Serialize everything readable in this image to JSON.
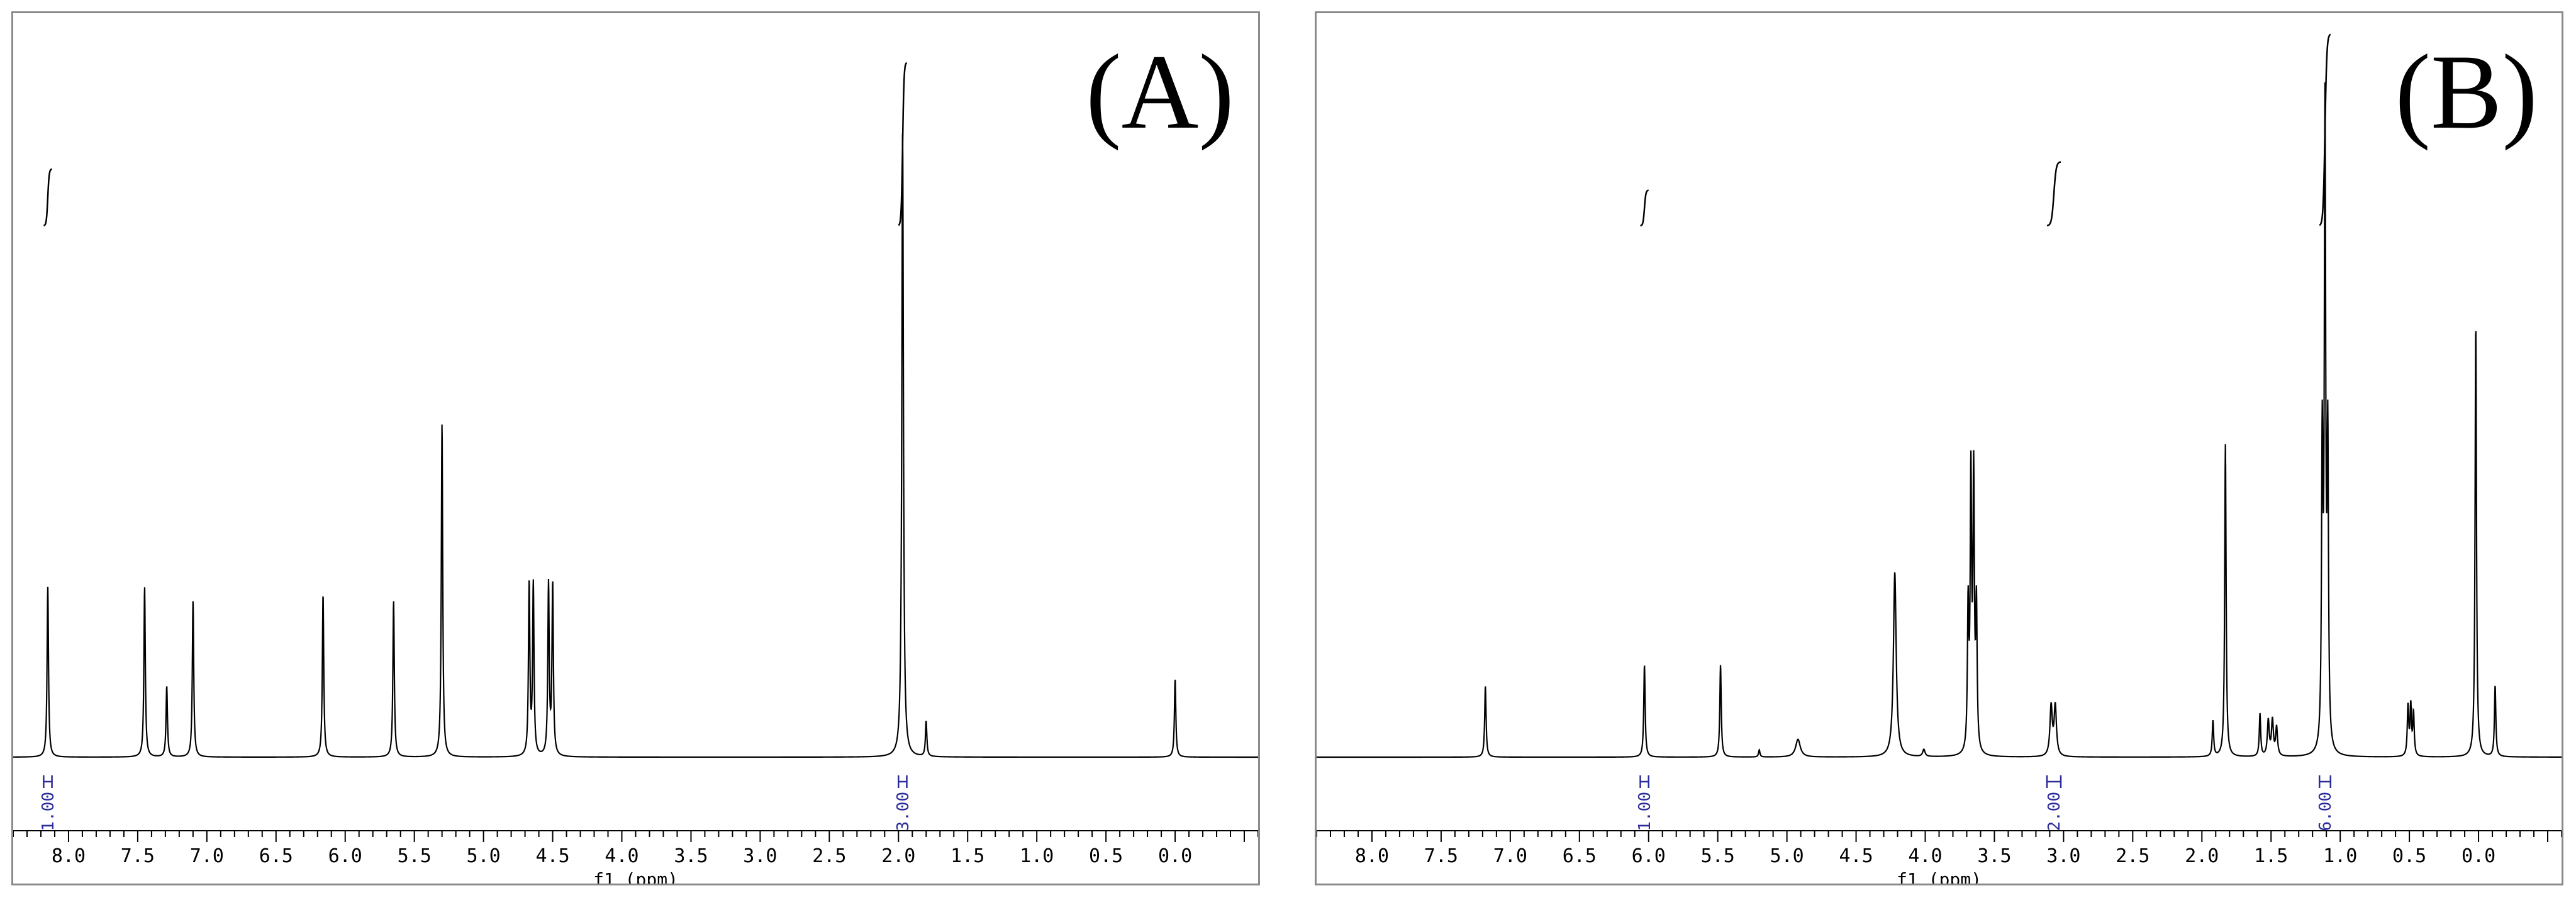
{
  "chart_data": [
    {
      "type": "line",
      "panel_label": "(A)",
      "xlabel": "f1 (ppm)",
      "x_reversed": true,
      "xlim": [
        8.4,
        -0.6
      ],
      "x_ticks": [
        "8.0",
        "7.5",
        "7.0",
        "6.5",
        "6.0",
        "5.5",
        "5.0",
        "4.5",
        "4.0",
        "3.5",
        "3.0",
        "2.5",
        "2.0",
        "1.5",
        "1.0",
        "0.5",
        "0.0"
      ],
      "y_axis_visible": false,
      "grid": false,
      "peaks": [
        {
          "ppm": 8.15,
          "height": 0.24,
          "width": 0.006
        },
        {
          "ppm": 7.45,
          "height": 0.24,
          "width": 0.006
        },
        {
          "ppm": 7.29,
          "height": 0.1,
          "width": 0.006
        },
        {
          "ppm": 7.1,
          "height": 0.22,
          "width": 0.006
        },
        {
          "ppm": 6.16,
          "height": 0.23,
          "width": 0.006
        },
        {
          "ppm": 5.65,
          "height": 0.22,
          "width": 0.006
        },
        {
          "ppm": 5.3,
          "height": 0.47,
          "width": 0.006
        },
        {
          "ppm": 4.67,
          "height": 0.24,
          "width": 0.006
        },
        {
          "ppm": 4.64,
          "height": 0.24,
          "width": 0.006
        },
        {
          "ppm": 4.53,
          "height": 0.24,
          "width": 0.006
        },
        {
          "ppm": 4.5,
          "height": 0.24,
          "width": 0.006
        },
        {
          "ppm": 1.97,
          "height": 0.88,
          "width": 0.007
        },
        {
          "ppm": 1.8,
          "height": 0.05,
          "width": 0.006
        },
        {
          "ppm": 0.0,
          "height": 0.11,
          "width": 0.006
        }
      ],
      "integrals": [
        {
          "from": 8.18,
          "to": 8.12,
          "value": "1.00",
          "curve_rise": 0.08
        },
        {
          "from": 2.0,
          "to": 1.94,
          "value": "3.00",
          "curve_rise": 0.23
        }
      ]
    },
    {
      "type": "line",
      "panel_label": "(B)",
      "xlabel": "f1 (ppm)",
      "x_reversed": true,
      "xlim": [
        8.4,
        -0.6
      ],
      "x_ticks": [
        "8.0",
        "7.5",
        "7.0",
        "6.5",
        "6.0",
        "5.5",
        "5.0",
        "4.5",
        "4.0",
        "3.5",
        "3.0",
        "2.5",
        "2.0",
        "1.5",
        "1.0",
        "0.5",
        "0.0"
      ],
      "y_axis_visible": false,
      "grid": false,
      "peaks": [
        {
          "ppm": 7.18,
          "height": 0.1,
          "width": 0.006
        },
        {
          "ppm": 6.03,
          "height": 0.13,
          "width": 0.006
        },
        {
          "ppm": 5.48,
          "height": 0.13,
          "width": 0.006
        },
        {
          "ppm": 5.2,
          "height": 0.01,
          "width": 0.006
        },
        {
          "ppm": 4.92,
          "height": 0.025,
          "width": 0.02
        },
        {
          "ppm": 4.22,
          "height": 0.26,
          "width": 0.012
        },
        {
          "ppm": 4.01,
          "height": 0.01,
          "width": 0.01
        },
        {
          "ppm": 3.69,
          "height": 0.2,
          "width": 0.006
        },
        {
          "ppm": 3.67,
          "height": 0.38,
          "width": 0.006
        },
        {
          "ppm": 3.65,
          "height": 0.38,
          "width": 0.006
        },
        {
          "ppm": 3.63,
          "height": 0.2,
          "width": 0.006
        },
        {
          "ppm": 3.09,
          "height": 0.07,
          "width": 0.01
        },
        {
          "ppm": 3.06,
          "height": 0.07,
          "width": 0.01
        },
        {
          "ppm": 1.92,
          "height": 0.05,
          "width": 0.006
        },
        {
          "ppm": 1.83,
          "height": 0.44,
          "width": 0.006
        },
        {
          "ppm": 1.58,
          "height": 0.06,
          "width": 0.006
        },
        {
          "ppm": 1.52,
          "height": 0.05,
          "width": 0.008
        },
        {
          "ppm": 1.49,
          "height": 0.05,
          "width": 0.008
        },
        {
          "ppm": 1.46,
          "height": 0.04,
          "width": 0.008
        },
        {
          "ppm": 1.13,
          "height": 0.42,
          "width": 0.006
        },
        {
          "ppm": 1.11,
          "height": 0.88,
          "width": 0.006
        },
        {
          "ppm": 1.09,
          "height": 0.42,
          "width": 0.006
        },
        {
          "ppm": 0.51,
          "height": 0.07,
          "width": 0.006
        },
        {
          "ppm": 0.49,
          "height": 0.07,
          "width": 0.006
        },
        {
          "ppm": 0.47,
          "height": 0.06,
          "width": 0.006
        },
        {
          "ppm": 0.02,
          "height": 0.61,
          "width": 0.006
        },
        {
          "ppm": -0.12,
          "height": 0.1,
          "width": 0.006
        }
      ],
      "integrals": [
        {
          "from": 6.06,
          "to": 6.0,
          "value": "1.00",
          "curve_rise": 0.05
        },
        {
          "from": 3.12,
          "to": 3.02,
          "value": "2.00",
          "curve_rise": 0.09
        },
        {
          "from": 1.15,
          "to": 1.07,
          "value": "6.00",
          "curve_rise": 0.27
        }
      ]
    }
  ]
}
